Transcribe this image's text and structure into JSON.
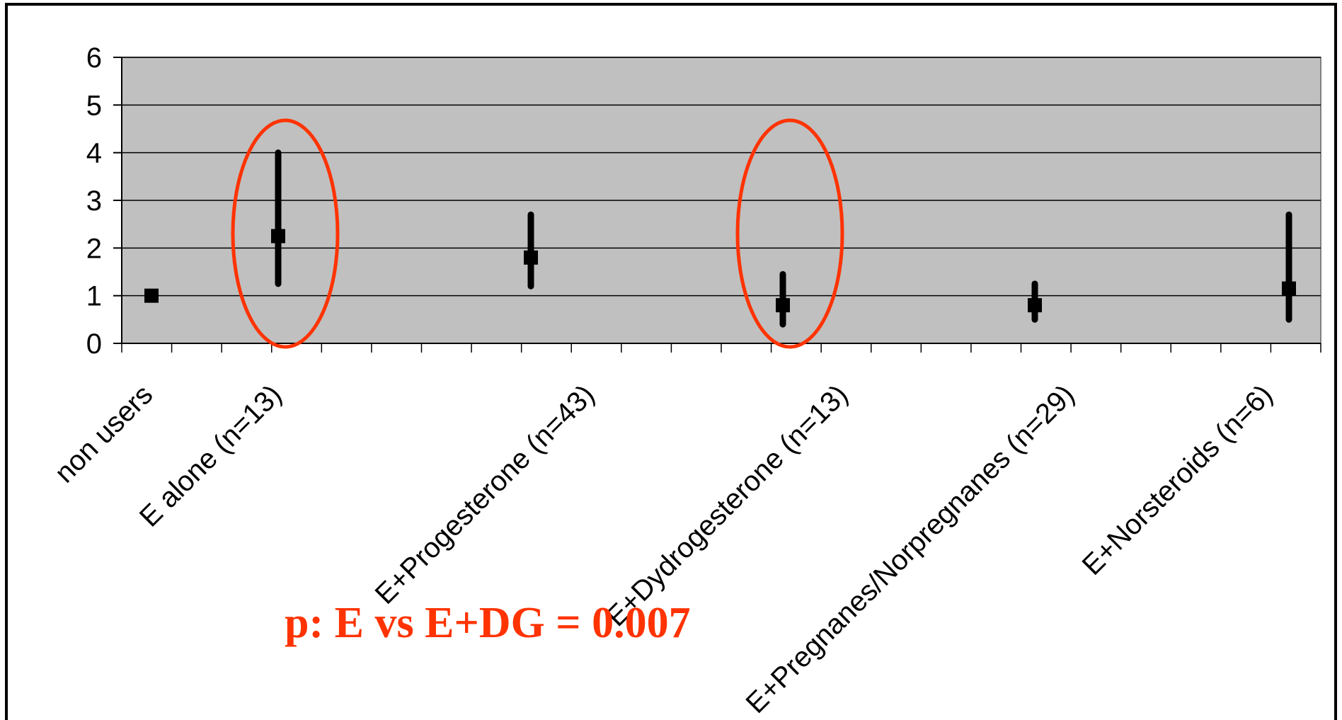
{
  "chart_data": {
    "type": "scatter",
    "subtype": "point-with-range",
    "title": "",
    "xlabel": "",
    "ylabel": "",
    "ylim": [
      0,
      6
    ],
    "yticks": [
      0,
      1,
      2,
      3,
      4,
      5,
      6
    ],
    "grid": true,
    "plot_background": "#c0c0c0",
    "categories": [
      "non users",
      "E alone (n=13)",
      "E+Progesterone (n=43)",
      "E+Dydrogesterone (n=13)",
      "E+Pregnanes/Norpregnanes (n=29)",
      "E+Norsteroids (n=6)"
    ],
    "series": [
      {
        "points": [
          {
            "category": "non users",
            "value": 1.0,
            "low": null,
            "high": null
          },
          {
            "category": "E alone (n=13)",
            "value": 2.25,
            "low": 1.25,
            "high": 4.0
          },
          {
            "category": "E+Progesterone (n=43)",
            "value": 1.8,
            "low": 1.2,
            "high": 2.7
          },
          {
            "category": "E+Dydrogesterone (n=13)",
            "value": 0.8,
            "low": 0.4,
            "high": 1.45
          },
          {
            "category": "E+Pregnanes/Norpregnanes (n=29)",
            "value": 0.8,
            "low": 0.5,
            "high": 1.25
          },
          {
            "category": "E+Norsteroids (n=6)",
            "value": 1.15,
            "low": 0.5,
            "high": 2.7
          }
        ]
      }
    ],
    "highlighted_categories": [
      "E alone (n=13)",
      "E+Dydrogesterone (n=13)"
    ],
    "highlight_color": "#ff3300",
    "annotation": "p:   E vs E+DG = 0.007"
  }
}
